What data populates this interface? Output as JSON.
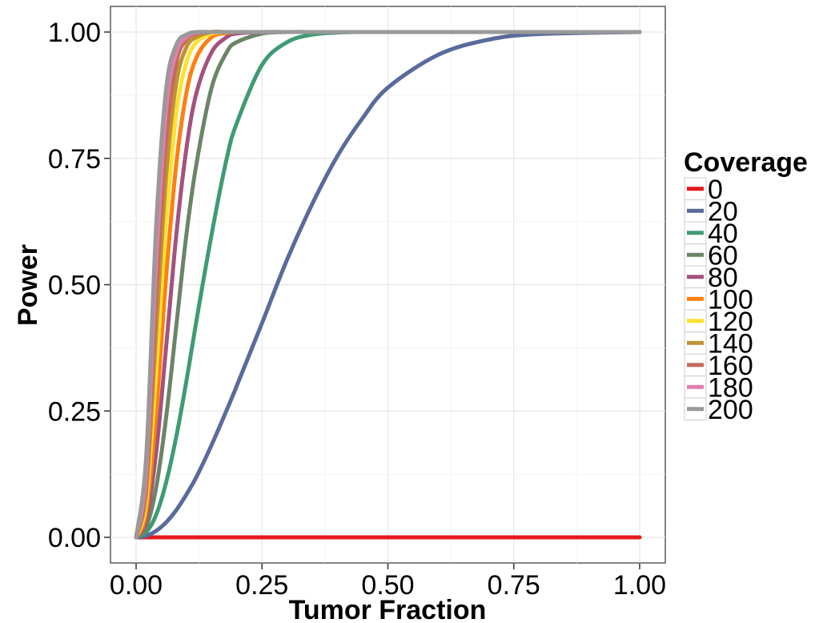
{
  "chart_data": {
    "type": "line",
    "xlabel": "Tumor Fraction",
    "ylabel": "Power",
    "xlim": [
      0,
      1
    ],
    "ylim": [
      0,
      1
    ],
    "x_ticks": [
      "0.00",
      "0.25",
      "0.50",
      "0.75",
      "1.00"
    ],
    "y_ticks": [
      "0.00",
      "0.25",
      "0.50",
      "0.75",
      "1.00"
    ],
    "grid": true,
    "legend": {
      "title": "Coverage",
      "placement": "right"
    },
    "x": [
      0,
      0.02,
      0.04,
      0.06,
      0.08,
      0.1,
      0.12,
      0.15,
      0.18,
      0.2,
      0.25,
      0.3,
      0.35,
      0.4,
      0.45,
      0.5,
      0.6,
      0.7,
      0.8,
      1.0
    ],
    "series": [
      {
        "name": "0",
        "color": "#e41a1c",
        "values": [
          0,
          0,
          0,
          0,
          0,
          0,
          0,
          0,
          0,
          0,
          0,
          0,
          0,
          0,
          0,
          0,
          0,
          0,
          0,
          0
        ]
      },
      {
        "name": "20",
        "color": "#5a6a9b",
        "values": [
          0,
          0.003,
          0.013,
          0.03,
          0.054,
          0.085,
          0.12,
          0.183,
          0.252,
          0.3,
          0.424,
          0.55,
          0.66,
          0.755,
          0.83,
          0.89,
          0.955,
          0.985,
          0.996,
          1.0
        ]
      },
      {
        "name": "40",
        "color": "#3f9b74",
        "values": [
          0,
          0.01,
          0.045,
          0.11,
          0.2,
          0.31,
          0.43,
          0.6,
          0.75,
          0.82,
          0.935,
          0.98,
          0.995,
          0.999,
          1.0,
          1.0,
          1.0,
          1.0,
          1.0,
          1.0
        ]
      },
      {
        "name": "60",
        "color": "#6b8567",
        "values": [
          0,
          0.02,
          0.1,
          0.24,
          0.42,
          0.6,
          0.74,
          0.89,
          0.96,
          0.98,
          0.997,
          1.0,
          1.0,
          1.0,
          1.0,
          1.0,
          1.0,
          1.0,
          1.0,
          1.0
        ]
      },
      {
        "name": "80",
        "color": "#a5527e",
        "values": [
          0,
          0.035,
          0.17,
          0.38,
          0.6,
          0.77,
          0.88,
          0.96,
          0.99,
          0.997,
          1.0,
          1.0,
          1.0,
          1.0,
          1.0,
          1.0,
          1.0,
          1.0,
          1.0,
          1.0
        ]
      },
      {
        "name": "100",
        "color": "#ff7f0e",
        "values": [
          0,
          0.05,
          0.25,
          0.52,
          0.74,
          0.88,
          0.95,
          0.99,
          0.998,
          1.0,
          1.0,
          1.0,
          1.0,
          1.0,
          1.0,
          1.0,
          1.0,
          1.0,
          1.0,
          1.0
        ]
      },
      {
        "name": "120",
        "color": "#ffe02e",
        "values": [
          0,
          0.07,
          0.33,
          0.63,
          0.84,
          0.94,
          0.98,
          0.997,
          1.0,
          1.0,
          1.0,
          1.0,
          1.0,
          1.0,
          1.0,
          1.0,
          1.0,
          1.0,
          1.0,
          1.0
        ]
      },
      {
        "name": "140",
        "color": "#bf9233",
        "values": [
          0,
          0.09,
          0.41,
          0.72,
          0.9,
          0.97,
          0.99,
          1.0,
          1.0,
          1.0,
          1.0,
          1.0,
          1.0,
          1.0,
          1.0,
          1.0,
          1.0,
          1.0,
          1.0,
          1.0
        ]
      },
      {
        "name": "160",
        "color": "#c46b5f",
        "values": [
          0,
          0.11,
          0.48,
          0.79,
          0.94,
          0.985,
          0.997,
          1.0,
          1.0,
          1.0,
          1.0,
          1.0,
          1.0,
          1.0,
          1.0,
          1.0,
          1.0,
          1.0,
          1.0,
          1.0
        ]
      },
      {
        "name": "180",
        "color": "#e07fb0",
        "values": [
          0,
          0.13,
          0.55,
          0.85,
          0.96,
          0.99,
          0.999,
          1.0,
          1.0,
          1.0,
          1.0,
          1.0,
          1.0,
          1.0,
          1.0,
          1.0,
          1.0,
          1.0,
          1.0,
          1.0
        ]
      },
      {
        "name": "200",
        "color": "#999999",
        "values": [
          0,
          0.16,
          0.62,
          0.89,
          0.975,
          0.995,
          1.0,
          1.0,
          1.0,
          1.0,
          1.0,
          1.0,
          1.0,
          1.0,
          1.0,
          1.0,
          1.0,
          1.0,
          1.0,
          1.0
        ]
      }
    ]
  }
}
